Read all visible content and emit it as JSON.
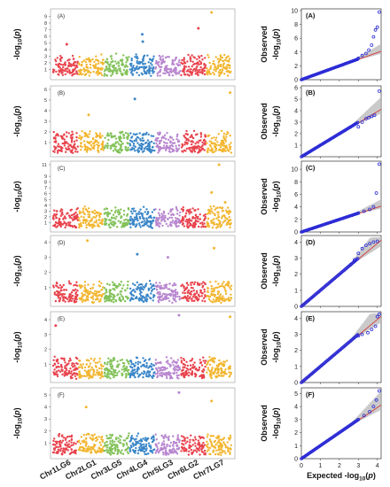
{
  "chromosomes": [
    "Chr1LG6",
    "Chr2LG1",
    "Chr3LG5",
    "Chr4LG4",
    "Chr5LG3",
    "Chr6LG2",
    "Chr7LG7"
  ],
  "chromosome_colors": [
    "#e8434d",
    "#f2b630",
    "#83c25a",
    "#3a86c8",
    "#b886cf",
    "#e8434d",
    "#f2b630"
  ],
  "manhattan_ylabel": "-log10(p)",
  "qq_ylabel_line1": "Observed",
  "qq_ylabel_line2": "-log10(p)",
  "qq_xlabel": "Expected -log10(p)",
  "qq_point_color": "#2b2bd6",
  "qq_fit_color": "#d43a3a",
  "chart_data": [
    {
      "type": "scatter",
      "panel": "manhattan",
      "label": "(A)",
      "ylim": [
        0,
        9.6
      ],
      "yticks": [
        1,
        2,
        3,
        4,
        5,
        6,
        7,
        8,
        9
      ],
      "peaks": [
        {
          "chrom": 0,
          "pos": 0.55,
          "value": 4.8
        },
        {
          "chrom": 3,
          "pos": 0.5,
          "value": 6.3
        },
        {
          "chrom": 3,
          "pos": 0.52,
          "value": 5.2
        },
        {
          "chrom": 5,
          "pos": 0.7,
          "value": 7.2
        },
        {
          "chrom": 6,
          "pos": 0.2,
          "value": 9.6
        }
      ]
    },
    {
      "type": "scatter",
      "panel": "manhattan",
      "label": "(B)",
      "ylim": [
        0,
        6
      ],
      "yticks": [
        1,
        2,
        3,
        4,
        5,
        6
      ],
      "peaks": [
        {
          "chrom": 3,
          "pos": 0.2,
          "value": 5.1
        },
        {
          "chrom": 6,
          "pos": 0.95,
          "value": 5.7
        },
        {
          "chrom": 1,
          "pos": 0.4,
          "value": 3.6
        }
      ]
    },
    {
      "type": "scatter",
      "panel": "manhattan",
      "label": "(C)",
      "ylim": [
        0,
        11
      ],
      "yticks": [
        1,
        2,
        3,
        4,
        5,
        6,
        7,
        8,
        9,
        11
      ],
      "peaks": [
        {
          "chrom": 6,
          "pos": 0.5,
          "value": 11
        },
        {
          "chrom": 6,
          "pos": 0.2,
          "value": 6.2
        },
        {
          "chrom": 6,
          "pos": 0.75,
          "value": 4.5
        }
      ]
    },
    {
      "type": "scatter",
      "panel": "manhattan",
      "label": "(D)",
      "ylim": [
        0,
        4.2
      ],
      "yticks": [
        1,
        2,
        3,
        4
      ],
      "peaks": [
        {
          "chrom": 1,
          "pos": 0.35,
          "value": 4.1
        },
        {
          "chrom": 3,
          "pos": 0.3,
          "value": 3.2
        },
        {
          "chrom": 4,
          "pos": 0.5,
          "value": 3.0
        },
        {
          "chrom": 6,
          "pos": 0.3,
          "value": 3.6
        }
      ]
    },
    {
      "type": "scatter",
      "panel": "manhattan",
      "label": "(E)",
      "ylim": [
        0,
        4.3
      ],
      "yticks": [
        1,
        2,
        3,
        4
      ],
      "peaks": [
        {
          "chrom": 0,
          "pos": 0.1,
          "value": 3.6
        },
        {
          "chrom": 4,
          "pos": 0.95,
          "value": 4.3
        },
        {
          "chrom": 6,
          "pos": 0.95,
          "value": 4.2
        }
      ]
    },
    {
      "type": "scatter",
      "panel": "manhattan",
      "label": "(F)",
      "ylim": [
        0,
        5.3
      ],
      "yticks": [
        1,
        2,
        3,
        4,
        5
      ],
      "peaks": [
        {
          "chrom": 4,
          "pos": 0.95,
          "value": 5.2
        },
        {
          "chrom": 1,
          "pos": 0.3,
          "value": 4.0
        },
        {
          "chrom": 6,
          "pos": 0.2,
          "value": 4.5
        }
      ]
    },
    {
      "type": "scatter",
      "panel": "qq",
      "label": "(A)",
      "xlim": [
        0,
        4.2
      ],
      "ylim": [
        0,
        10
      ],
      "yticks": [
        0,
        2,
        4,
        6,
        8,
        10
      ],
      "tail": [
        [
          3.0,
          3.1
        ],
        [
          3.2,
          3.5
        ],
        [
          3.4,
          3.8
        ],
        [
          3.55,
          4.3
        ],
        [
          3.7,
          5.0
        ],
        [
          3.8,
          6.2
        ],
        [
          3.9,
          7.2
        ],
        [
          4.0,
          7.6
        ],
        [
          4.1,
          9.8
        ]
      ]
    },
    {
      "type": "scatter",
      "panel": "qq",
      "label": "(B)",
      "xlim": [
        0,
        4.2
      ],
      "ylim": [
        0,
        6
      ],
      "yticks": [
        1,
        2,
        3,
        4,
        5,
        6
      ],
      "tail": [
        [
          3.0,
          2.6
        ],
        [
          3.2,
          3.0
        ],
        [
          3.4,
          3.3
        ],
        [
          3.55,
          3.4
        ],
        [
          3.7,
          3.5
        ],
        [
          3.85,
          3.6
        ],
        [
          4.1,
          5.7
        ]
      ]
    },
    {
      "type": "scatter",
      "panel": "qq",
      "label": "(C)",
      "xlim": [
        0,
        4.2
      ],
      "ylim": [
        0,
        11
      ],
      "yticks": [
        0,
        2,
        4,
        6,
        8,
        10
      ],
      "tail": [
        [
          3.0,
          3.0
        ],
        [
          3.3,
          3.3
        ],
        [
          3.6,
          3.6
        ],
        [
          3.8,
          4.0
        ],
        [
          3.95,
          6.2
        ],
        [
          4.1,
          10.8
        ]
      ]
    },
    {
      "type": "scatter",
      "panel": "qq",
      "label": "(D)",
      "xlim": [
        0,
        4.2
      ],
      "ylim": [
        0,
        4.3
      ],
      "yticks": [
        0,
        1,
        2,
        3,
        4
      ],
      "tail": [
        [
          2.6,
          2.6
        ],
        [
          2.8,
          2.9
        ],
        [
          3.0,
          3.3
        ],
        [
          3.2,
          3.6
        ],
        [
          3.4,
          3.8
        ],
        [
          3.6,
          3.9
        ],
        [
          3.8,
          4.0
        ],
        [
          4.0,
          4.05
        ]
      ]
    },
    {
      "type": "scatter",
      "panel": "qq",
      "label": "(E)",
      "xlim": [
        0,
        4.2
      ],
      "ylim": [
        0,
        4.3
      ],
      "yticks": [
        0,
        1,
        2,
        3,
        4
      ],
      "tail": [
        [
          3.0,
          2.9
        ],
        [
          3.2,
          3.0
        ],
        [
          3.5,
          3.1
        ],
        [
          3.7,
          3.3
        ],
        [
          3.9,
          3.5
        ],
        [
          4.0,
          4.1
        ],
        [
          4.1,
          4.25
        ]
      ]
    },
    {
      "type": "scatter",
      "panel": "qq",
      "label": "(F)",
      "xlim": [
        0,
        4.2
      ],
      "ylim": [
        0,
        5.3
      ],
      "yticks": [
        0,
        1,
        2,
        3,
        4,
        5
      ],
      "tail": [
        [
          3.0,
          3.0
        ],
        [
          3.3,
          3.3
        ],
        [
          3.6,
          3.6
        ],
        [
          3.8,
          4.0
        ],
        [
          3.95,
          4.5
        ],
        [
          4.1,
          5.2
        ]
      ]
    }
  ],
  "qq_xticks": [
    0,
    1,
    2,
    3,
    4
  ]
}
